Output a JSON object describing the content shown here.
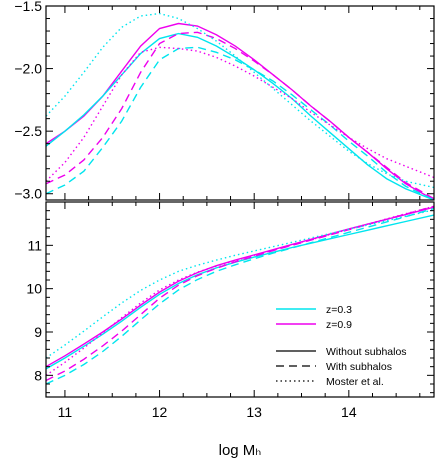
{
  "colors": {
    "cyan": "#00e5ee",
    "magenta": "#ee00ee",
    "black": "#000000",
    "background": "#ffffff"
  },
  "chart_data": [
    {
      "type": "line",
      "panel": "top",
      "title": "",
      "xlabel": "",
      "ylabel": "",
      "xlim": [
        10.8,
        14.9
      ],
      "ylim": [
        -3.05,
        -1.5
      ],
      "x_ticks": [
        "11",
        "12",
        "13",
        "14"
      ],
      "y_ticks": [
        "-1.5",
        "-2.0",
        "-2.5",
        "-3.0"
      ],
      "y_tick_values": [
        -1.5,
        -2.0,
        -2.5,
        -3.0
      ],
      "grid": false,
      "series": [
        {
          "name": "z=0.9, Without subhalos",
          "color": "magenta",
          "style": "solid",
          "x": [
            10.8,
            11.0,
            11.2,
            11.4,
            11.6,
            11.8,
            12.0,
            12.2,
            12.4,
            12.6,
            12.8,
            13.0,
            13.2,
            13.4,
            13.6,
            13.8,
            14.0,
            14.2,
            14.4,
            14.6,
            14.9
          ],
          "y": [
            -2.6,
            -2.5,
            -2.38,
            -2.22,
            -2.02,
            -1.82,
            -1.68,
            -1.64,
            -1.66,
            -1.73,
            -1.82,
            -1.93,
            -2.05,
            -2.17,
            -2.3,
            -2.42,
            -2.55,
            -2.67,
            -2.8,
            -2.92,
            -3.05
          ]
        },
        {
          "name": "z=0.3, Without subhalos",
          "color": "cyan",
          "style": "solid",
          "x": [
            10.8,
            11.0,
            11.2,
            11.4,
            11.6,
            11.8,
            12.0,
            12.2,
            12.4,
            12.6,
            12.8,
            13.0,
            13.2,
            13.4,
            13.6,
            13.8,
            14.0,
            14.2,
            14.4,
            14.6,
            14.9
          ],
          "y": [
            -2.62,
            -2.5,
            -2.37,
            -2.22,
            -2.05,
            -1.88,
            -1.76,
            -1.72,
            -1.75,
            -1.82,
            -1.91,
            -2.01,
            -2.12,
            -2.24,
            -2.38,
            -2.51,
            -2.64,
            -2.77,
            -2.88,
            -2.96,
            -3.05
          ]
        },
        {
          "name": "z=0.9, With subhalos",
          "color": "magenta",
          "style": "dashed",
          "x": [
            10.8,
            11.0,
            11.2,
            11.4,
            11.6,
            11.8,
            12.0,
            12.2,
            12.4,
            12.6,
            12.8,
            13.0,
            13.2,
            13.4,
            13.6,
            13.8,
            14.0,
            14.2,
            14.4,
            14.6,
            14.9
          ],
          "y": [
            -2.92,
            -2.85,
            -2.73,
            -2.55,
            -2.32,
            -2.03,
            -1.8,
            -1.72,
            -1.71,
            -1.76,
            -1.84,
            -1.94,
            -2.05,
            -2.17,
            -2.3,
            -2.42,
            -2.55,
            -2.67,
            -2.79,
            -2.91,
            -3.04
          ]
        },
        {
          "name": "z=0.3, With subhalos",
          "color": "cyan",
          "style": "dashed",
          "x": [
            10.8,
            11.0,
            11.2,
            11.4,
            11.6,
            11.8,
            12.0,
            12.2,
            12.4,
            12.6,
            12.8,
            13.0,
            13.2,
            13.4,
            13.6,
            13.8,
            14.0,
            14.2,
            14.4,
            14.6,
            14.9
          ],
          "y": [
            -3.0,
            -2.93,
            -2.82,
            -2.63,
            -2.42,
            -2.15,
            -1.93,
            -1.84,
            -1.83,
            -1.87,
            -1.93,
            -2.01,
            -2.1,
            -2.21,
            -2.33,
            -2.45,
            -2.58,
            -2.7,
            -2.83,
            -2.94,
            -3.05
          ]
        },
        {
          "name": "z=0.9, Moster et al.",
          "color": "magenta",
          "style": "dotted",
          "x": [
            10.8,
            11.0,
            11.2,
            11.4,
            11.6,
            11.8,
            12.0,
            12.2,
            12.4,
            12.6,
            12.8,
            13.0,
            13.2,
            13.4,
            13.6,
            13.8,
            14.0,
            14.2,
            14.4,
            14.6,
            14.9
          ],
          "y": [
            -2.9,
            -2.75,
            -2.55,
            -2.3,
            -2.05,
            -1.87,
            -1.83,
            -1.84,
            -1.86,
            -1.91,
            -1.98,
            -2.06,
            -2.15,
            -2.24,
            -2.35,
            -2.45,
            -2.55,
            -2.64,
            -2.72,
            -2.78,
            -2.87
          ]
        },
        {
          "name": "z=0.3, Moster et al.",
          "color": "cyan",
          "style": "dotted",
          "x": [
            10.8,
            11.0,
            11.2,
            11.4,
            11.6,
            11.8,
            12.0,
            12.2,
            12.4,
            12.6,
            12.8,
            13.0,
            13.2,
            13.4,
            13.6,
            13.8,
            14.0,
            14.2,
            14.4,
            14.6,
            14.9
          ],
          "y": [
            -2.38,
            -2.22,
            -2.03,
            -1.83,
            -1.67,
            -1.58,
            -1.56,
            -1.6,
            -1.68,
            -1.78,
            -1.9,
            -2.03,
            -2.16,
            -2.29,
            -2.42,
            -2.54,
            -2.66,
            -2.76,
            -2.84,
            -2.9,
            -2.95
          ]
        }
      ]
    },
    {
      "type": "line",
      "panel": "bottom",
      "title": "",
      "xlabel": "log Mₕ",
      "ylabel": "",
      "xlim": [
        10.8,
        14.9
      ],
      "ylim": [
        7.5,
        12.0
      ],
      "x_ticks": [
        "11",
        "12",
        "13",
        "14"
      ],
      "y_ticks": [
        "8",
        "9",
        "10",
        "11"
      ],
      "y_tick_values": [
        8,
        9,
        10,
        11
      ],
      "grid": false,
      "legend": {
        "placement": "lower-right",
        "color_entries": [
          {
            "label": "z=0.3",
            "color": "cyan"
          },
          {
            "label": "z=0.9",
            "color": "magenta"
          }
        ],
        "style_entries": [
          {
            "label": "Without subhalos",
            "style": "solid"
          },
          {
            "label": "With subhalos",
            "style": "dashed"
          },
          {
            "label": "Moster et al.",
            "style": "dotted"
          }
        ]
      },
      "series": [
        {
          "name": "z=0.9, Without subhalos",
          "color": "magenta",
          "style": "solid",
          "x": [
            10.8,
            11.0,
            11.2,
            11.4,
            11.6,
            11.8,
            12.0,
            12.2,
            12.4,
            12.6,
            12.8,
            13.0,
            13.2,
            13.4,
            13.6,
            13.8,
            14.0,
            14.2,
            14.4,
            14.6,
            14.9
          ],
          "y": [
            8.2,
            8.45,
            8.72,
            9.0,
            9.3,
            9.62,
            9.92,
            10.17,
            10.37,
            10.53,
            10.66,
            10.78,
            10.9,
            11.02,
            11.14,
            11.26,
            11.38,
            11.49,
            11.6,
            11.71,
            11.88
          ]
        },
        {
          "name": "z=0.3, Without subhalos",
          "color": "cyan",
          "style": "solid",
          "x": [
            10.8,
            11.0,
            11.2,
            11.4,
            11.6,
            11.8,
            12.0,
            12.2,
            12.4,
            12.6,
            12.8,
            13.0,
            13.2,
            13.4,
            13.6,
            13.8,
            14.0,
            14.2,
            14.4,
            14.6,
            14.9
          ],
          "y": [
            8.15,
            8.4,
            8.67,
            8.95,
            9.25,
            9.57,
            9.87,
            10.12,
            10.32,
            10.48,
            10.61,
            10.73,
            10.84,
            10.95,
            11.05,
            11.15,
            11.25,
            11.35,
            11.45,
            11.55,
            11.7
          ]
        },
        {
          "name": "z=0.9, With subhalos",
          "color": "magenta",
          "style": "dashed",
          "x": [
            10.8,
            11.0,
            11.2,
            11.4,
            11.6,
            11.8,
            12.0,
            12.2,
            12.4,
            12.6,
            12.8,
            13.0,
            13.2,
            13.4,
            13.6,
            13.8,
            14.0,
            14.2,
            14.4,
            14.6,
            14.9
          ],
          "y": [
            7.88,
            8.1,
            8.37,
            8.68,
            9.02,
            9.4,
            9.78,
            10.08,
            10.3,
            10.47,
            10.62,
            10.75,
            10.88,
            11.0,
            11.12,
            11.24,
            11.36,
            11.48,
            11.6,
            11.72,
            11.9
          ]
        },
        {
          "name": "z=0.3, With subhalos",
          "color": "cyan",
          "style": "dashed",
          "x": [
            10.8,
            11.0,
            11.2,
            11.4,
            11.6,
            11.8,
            12.0,
            12.2,
            12.4,
            12.6,
            12.8,
            13.0,
            13.2,
            13.4,
            13.6,
            13.8,
            14.0,
            14.2,
            14.4,
            14.6,
            14.9
          ],
          "y": [
            7.8,
            8.0,
            8.25,
            8.55,
            8.9,
            9.28,
            9.65,
            9.97,
            10.21,
            10.4,
            10.55,
            10.69,
            10.82,
            10.94,
            11.06,
            11.18,
            11.3,
            11.42,
            11.54,
            11.66,
            11.85
          ]
        },
        {
          "name": "z=0.9, Moster et al.",
          "color": "magenta",
          "style": "dotted",
          "x": [
            10.8,
            11.0,
            11.2,
            11.4,
            11.6,
            11.8,
            12.0,
            12.2,
            12.4,
            12.6,
            12.8,
            13.0,
            13.2,
            13.4,
            13.6,
            13.8,
            14.0,
            14.2,
            14.4,
            14.6,
            14.9
          ],
          "y": [
            8.0,
            8.3,
            8.63,
            8.98,
            9.33,
            9.67,
            9.97,
            10.2,
            10.38,
            10.52,
            10.65,
            10.77,
            10.89,
            11.01,
            11.13,
            11.25,
            11.37,
            11.49,
            11.61,
            11.73,
            11.9
          ]
        },
        {
          "name": "z=0.3, Moster et al.",
          "color": "cyan",
          "style": "dotted",
          "x": [
            10.8,
            11.0,
            11.2,
            11.4,
            11.6,
            11.8,
            12.0,
            12.2,
            12.4,
            12.6,
            12.8,
            13.0,
            13.2,
            13.4,
            13.6,
            13.8,
            14.0,
            14.2,
            14.4,
            14.6,
            14.9
          ],
          "y": [
            8.4,
            8.7,
            9.02,
            9.35,
            9.67,
            9.96,
            10.2,
            10.4,
            10.54,
            10.66,
            10.77,
            10.87,
            10.97,
            11.07,
            11.17,
            11.27,
            11.37,
            11.47,
            11.57,
            11.67,
            11.82
          ]
        }
      ]
    }
  ]
}
